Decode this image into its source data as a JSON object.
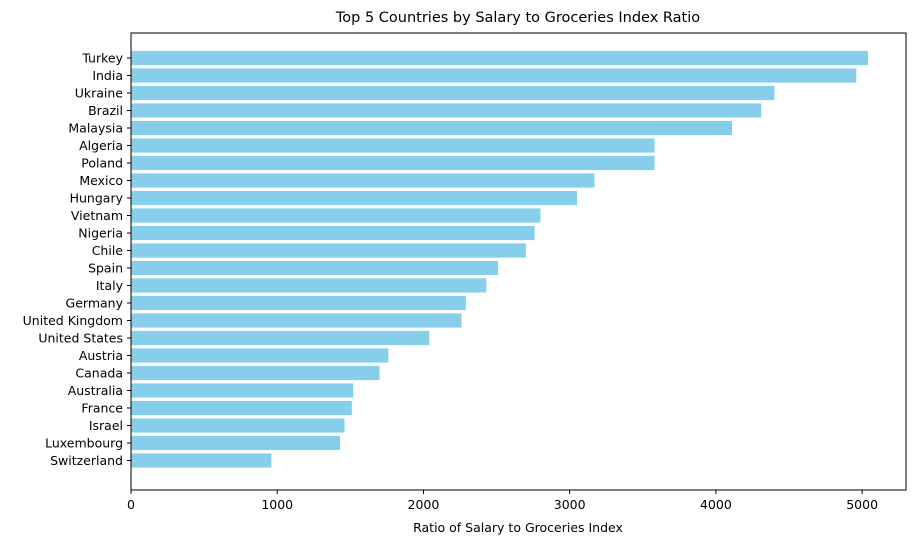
{
  "chart_data": {
    "type": "bar",
    "orientation": "horizontal",
    "title": "Top 5 Countries by Salary to Groceries Index Ratio",
    "xlabel": "Ratio of Salary to Groceries Index",
    "ylabel": "",
    "xlim": [
      0,
      5300
    ],
    "xticks": [
      0,
      1000,
      2000,
      3000,
      4000,
      5000
    ],
    "grid": false,
    "bar_color": "#87ceeb",
    "categories": [
      "Turkey",
      "India",
      "Ukraine",
      "Brazil",
      "Malaysia",
      "Algeria",
      "Poland",
      "Mexico",
      "Hungary",
      "Vietnam",
      "Nigeria",
      "Chile",
      "Spain",
      "Italy",
      "Germany",
      "United Kingdom",
      "United States",
      "Austria",
      "Canada",
      "Australia",
      "France",
      "Israel",
      "Luxembourg",
      "Switzerland"
    ],
    "values": [
      5040,
      4960,
      4400,
      4310,
      4110,
      3580,
      3580,
      3170,
      3050,
      2800,
      2760,
      2700,
      2510,
      2430,
      2290,
      2260,
      2040,
      1760,
      1700,
      1520,
      1510,
      1460,
      1430,
      960
    ]
  }
}
